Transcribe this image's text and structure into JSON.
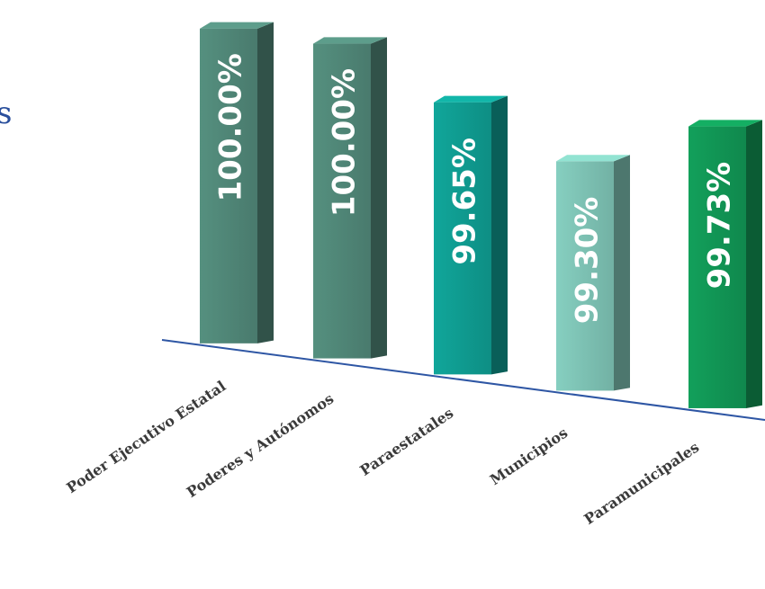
{
  "page": {
    "edge_fragment": "s"
  },
  "chart_data": {
    "type": "bar",
    "categories": [
      "Poder Ejecutivo Estatal",
      "Poderes y Autónomos",
      "Paraestatales",
      "Municipios",
      "Paramunicipales"
    ],
    "values": [
      100.0,
      100.0,
      99.65,
      99.3,
      99.73
    ],
    "value_labels": [
      "100.00%",
      "100.00%",
      "99.65%",
      "99.30%",
      "99.73%"
    ],
    "colors": [
      "#4f8576",
      "#4f8576",
      "#0f9a8f",
      "#7cc0b2",
      "#119454"
    ],
    "axis_line_color": "#2e56a4",
    "title": "",
    "xlabel": "",
    "ylabel": "",
    "grid": false,
    "legend": "none"
  }
}
